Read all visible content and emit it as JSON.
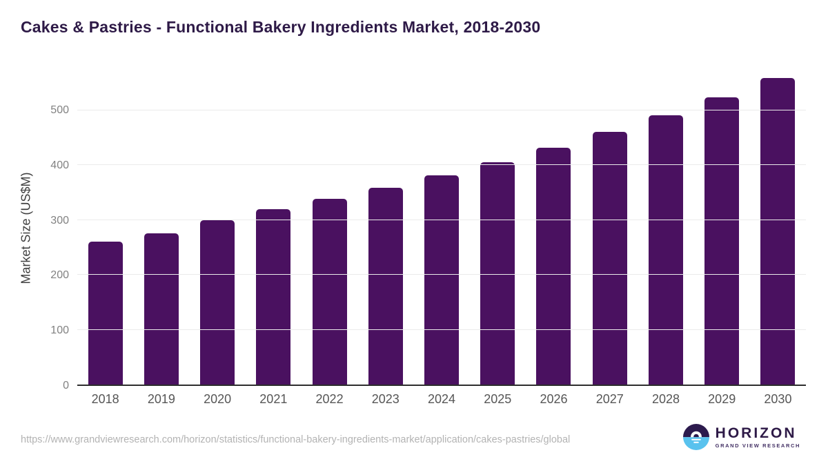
{
  "header": {
    "title": "Cakes & Pastries - Functional Bakery Ingredients Market, 2018-2030"
  },
  "chart_data": {
    "type": "bar",
    "categories": [
      "2018",
      "2019",
      "2020",
      "2021",
      "2022",
      "2023",
      "2024",
      "2025",
      "2026",
      "2027",
      "2028",
      "2029",
      "2030"
    ],
    "values": [
      260,
      276,
      300,
      320,
      338,
      359,
      381,
      405,
      432,
      461,
      491,
      523,
      559
    ],
    "title": "Cakes & Pastries - Functional Bakery Ingredients Market, 2018-2030",
    "xlabel": "",
    "ylabel": "Market Size (US$M)",
    "ylim": [
      0,
      575
    ],
    "yticks": [
      0,
      100,
      200,
      300,
      400,
      500
    ],
    "grid": true,
    "legend": "none",
    "bar_color": "#4a1160"
  },
  "footer": {
    "source_url": "https://www.grandviewresearch.com/horizon/statistics/functional-bakery-ingredients-market/application/cakes-pastries/global"
  },
  "logo": {
    "name": "HORIZON",
    "subtitle": "GRAND VIEW RESEARCH",
    "icon_dark_color": "#2c1a4d",
    "icon_blue_color": "#59c2ee"
  },
  "colors": {
    "title_text": "#2e1a47",
    "bar": "#4a1160",
    "axis_line": "#2d2d2d",
    "gridline": "#ebebeb",
    "tick_text": "#818181",
    "x_label_text": "#565656",
    "url_text": "#b3b3b3"
  }
}
